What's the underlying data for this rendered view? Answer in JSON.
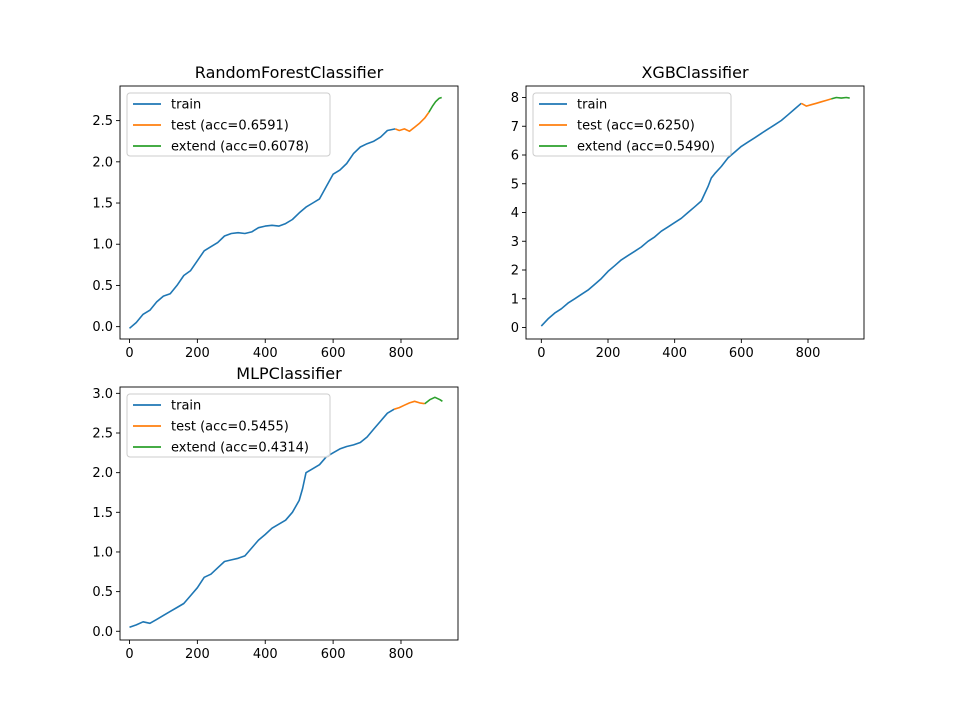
{
  "chart_data": [
    {
      "type": "line",
      "title": "RandomForestClassifier",
      "xlabel": "",
      "ylabel": "",
      "xlim": [
        -28,
        968
      ],
      "ylim": [
        -0.15,
        2.92
      ],
      "xticks": [
        0,
        200,
        400,
        600,
        800
      ],
      "xtick_labels": [
        "0",
        "200",
        "400",
        "600",
        "800"
      ],
      "yticks": [
        0.0,
        0.5,
        1.0,
        1.5,
        2.0,
        2.5
      ],
      "ytick_labels": [
        "0.0",
        "0.5",
        "1.0",
        "1.5",
        "2.0",
        "2.5"
      ],
      "legend_position": "upper-left",
      "series": [
        {
          "name": "train",
          "color": "#1f77b4",
          "x": [
            0,
            20,
            40,
            60,
            80,
            100,
            120,
            140,
            160,
            180,
            200,
            220,
            240,
            260,
            280,
            300,
            320,
            340,
            360,
            380,
            400,
            420,
            440,
            460,
            480,
            500,
            520,
            540,
            560,
            580,
            600,
            620,
            640,
            660,
            680,
            700,
            720,
            740,
            760,
            783
          ],
          "y": [
            -0.02,
            0.05,
            0.15,
            0.2,
            0.3,
            0.37,
            0.4,
            0.5,
            0.62,
            0.68,
            0.8,
            0.92,
            0.97,
            1.02,
            1.1,
            1.13,
            1.14,
            1.13,
            1.15,
            1.2,
            1.22,
            1.23,
            1.22,
            1.25,
            1.3,
            1.38,
            1.45,
            1.5,
            1.55,
            1.7,
            1.85,
            1.9,
            1.98,
            2.1,
            2.18,
            2.22,
            2.25,
            2.3,
            2.38,
            2.4
          ]
        },
        {
          "name": "test (acc=0.6591)",
          "color": "#ff7f0e",
          "x": [
            783,
            795,
            810,
            825,
            840,
            855,
            870,
            882
          ],
          "y": [
            2.4,
            2.38,
            2.4,
            2.37,
            2.42,
            2.47,
            2.53,
            2.6
          ]
        },
        {
          "name": "extend (acc=0.6078)",
          "color": "#2ca02c",
          "x": [
            882,
            892,
            902,
            912,
            920
          ],
          "y": [
            2.6,
            2.67,
            2.73,
            2.77,
            2.78
          ]
        }
      ]
    },
    {
      "type": "line",
      "title": "XGBClassifier",
      "xlabel": "",
      "ylabel": "",
      "xlim": [
        -46,
        968
      ],
      "ylim": [
        -0.4,
        8.4
      ],
      "xticks": [
        0,
        200,
        400,
        600,
        800
      ],
      "xtick_labels": [
        "0",
        "200",
        "400",
        "600",
        "800"
      ],
      "yticks": [
        0,
        1,
        2,
        3,
        4,
        5,
        6,
        7,
        8
      ],
      "ytick_labels": [
        "0",
        "1",
        "2",
        "3",
        "4",
        "5",
        "6",
        "7",
        "8"
      ],
      "legend_position": "upper-left",
      "series": [
        {
          "name": "train",
          "color": "#1f77b4",
          "x": [
            0,
            20,
            40,
            60,
            80,
            100,
            120,
            140,
            160,
            180,
            200,
            220,
            240,
            260,
            280,
            300,
            320,
            340,
            360,
            380,
            400,
            420,
            440,
            460,
            480,
            500,
            510,
            520,
            540,
            560,
            580,
            600,
            620,
            640,
            660,
            680,
            700,
            720,
            740,
            760,
            780
          ],
          "y": [
            0.05,
            0.3,
            0.5,
            0.65,
            0.85,
            1.0,
            1.15,
            1.3,
            1.5,
            1.7,
            1.95,
            2.15,
            2.35,
            2.5,
            2.65,
            2.8,
            3.0,
            3.15,
            3.35,
            3.5,
            3.65,
            3.8,
            4.0,
            4.2,
            4.4,
            4.9,
            5.2,
            5.35,
            5.6,
            5.9,
            6.1,
            6.3,
            6.45,
            6.6,
            6.75,
            6.9,
            7.05,
            7.2,
            7.4,
            7.6,
            7.8
          ]
        },
        {
          "name": "test (acc=0.6250)",
          "color": "#ff7f0e",
          "x": [
            780,
            795,
            810,
            825,
            840,
            855,
            870
          ],
          "y": [
            7.8,
            7.7,
            7.75,
            7.8,
            7.85,
            7.9,
            7.95
          ]
        },
        {
          "name": "extend (acc=0.5490)",
          "color": "#2ca02c",
          "x": [
            870,
            885,
            900,
            915,
            925
          ],
          "y": [
            7.95,
            8.0,
            7.98,
            8.0,
            7.98
          ]
        }
      ]
    },
    {
      "type": "line",
      "title": "MLPClassifier",
      "xlabel": "",
      "ylabel": "",
      "xlim": [
        -28,
        968
      ],
      "ylim": [
        -0.11,
        3.08
      ],
      "xticks": [
        0,
        200,
        400,
        600,
        800
      ],
      "xtick_labels": [
        "0",
        "200",
        "400",
        "600",
        "800"
      ],
      "yticks": [
        0.0,
        0.5,
        1.0,
        1.5,
        2.0,
        2.5,
        3.0
      ],
      "ytick_labels": [
        "0.0",
        "0.5",
        "1.0",
        "1.5",
        "2.0",
        "2.5",
        "3.0"
      ],
      "legend_position": "upper-left",
      "series": [
        {
          "name": "train",
          "color": "#1f77b4",
          "x": [
            0,
            20,
            40,
            60,
            80,
            100,
            120,
            140,
            160,
            180,
            200,
            220,
            240,
            260,
            280,
            300,
            320,
            340,
            360,
            380,
            400,
            420,
            440,
            460,
            480,
            500,
            510,
            520,
            540,
            560,
            580,
            600,
            620,
            640,
            660,
            680,
            700,
            720,
            740,
            760,
            780
          ],
          "y": [
            0.05,
            0.08,
            0.12,
            0.1,
            0.15,
            0.2,
            0.25,
            0.3,
            0.35,
            0.45,
            0.55,
            0.68,
            0.72,
            0.8,
            0.88,
            0.9,
            0.92,
            0.95,
            1.05,
            1.15,
            1.22,
            1.3,
            1.35,
            1.4,
            1.5,
            1.65,
            1.8,
            2.0,
            2.05,
            2.1,
            2.2,
            2.25,
            2.3,
            2.33,
            2.35,
            2.38,
            2.45,
            2.55,
            2.65,
            2.75,
            2.8
          ]
        },
        {
          "name": "test (acc=0.5455)",
          "color": "#ff7f0e",
          "x": [
            780,
            795,
            810,
            825,
            840,
            855,
            870
          ],
          "y": [
            2.8,
            2.82,
            2.85,
            2.88,
            2.9,
            2.88,
            2.87
          ]
        },
        {
          "name": "extend (acc=0.4314)",
          "color": "#2ca02c",
          "x": [
            870,
            885,
            900,
            915,
            922
          ],
          "y": [
            2.87,
            2.92,
            2.95,
            2.92,
            2.9
          ]
        }
      ]
    }
  ]
}
